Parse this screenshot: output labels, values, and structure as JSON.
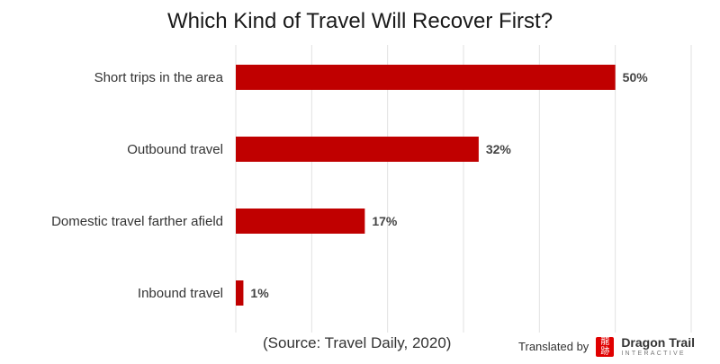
{
  "chart_data": {
    "type": "bar",
    "orientation": "horizontal",
    "title": "Which Kind of Travel Will Recover First?",
    "categories": [
      "Short trips in the area",
      "Outbound travel",
      "Domestic travel farther afield",
      "Inbound travel"
    ],
    "values": [
      50,
      32,
      17,
      1
    ],
    "value_labels": [
      "50%",
      "32%",
      "17%",
      "1%"
    ],
    "xlim": [
      0,
      60
    ],
    "grid": true,
    "bar_color": "#c00000"
  },
  "footer": {
    "source": "(Source: Travel Daily, 2020)",
    "credit_label": "Translated by",
    "logo_name": "Dragon Trail",
    "logo_sub": "INTERACTIVE"
  }
}
